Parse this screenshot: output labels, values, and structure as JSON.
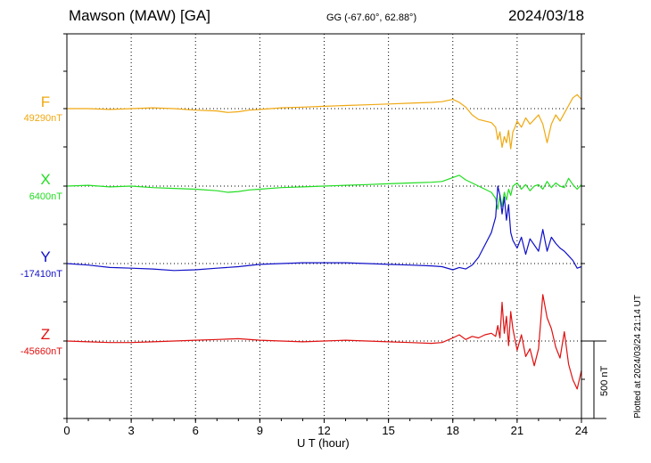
{
  "header": {
    "title": "Mawson (MAW)  [GA]",
    "coords": "GG (-67.60°,  62.88°)",
    "date": "2024/03/18"
  },
  "plotted_note": "Plotted at 2024/03/24 21:14 UT",
  "scale_label": "500 nT",
  "colors": {
    "F": "#f0a810",
    "X": "#22dd22",
    "Y": "#1010c8",
    "Z": "#e01010"
  },
  "components": [
    {
      "id": "F",
      "label": "F",
      "baseline": "49290nT"
    },
    {
      "id": "X",
      "label": "X",
      "baseline": "6400nT"
    },
    {
      "id": "Y",
      "label": "Y",
      "baseline": "-17410nT"
    },
    {
      "id": "Z",
      "label": "Z",
      "baseline": "-45660nT"
    }
  ],
  "chart_data": {
    "type": "line",
    "title": "Mawson (MAW)  [GA]",
    "xlabel": "U T (hour)",
    "ylabel": "",
    "xlim": [
      0,
      24
    ],
    "xticks": [
      0,
      3,
      6,
      9,
      12,
      15,
      18,
      21,
      24
    ],
    "tick_labels": [
      "0",
      "3",
      "6",
      "9",
      "12",
      "15",
      "18",
      "21",
      "24"
    ],
    "units": "nT",
    "scale_bar_nT": 500,
    "grid": true,
    "series": [
      {
        "name": "F",
        "baseline_nT": 49290,
        "x": [
          0,
          1,
          2,
          3,
          4,
          5,
          6,
          7,
          7.5,
          8,
          8.5,
          9,
          10,
          11,
          12,
          13,
          14,
          15,
          16,
          17,
          17.5,
          18,
          18.3,
          18.6,
          18.9,
          19.2,
          19.5,
          19.8,
          20.0,
          20.1,
          20.2,
          20.3,
          20.4,
          20.5,
          20.6,
          20.7,
          20.8,
          20.9,
          21.0,
          21.2,
          21.4,
          21.6,
          21.8,
          22.0,
          22.2,
          22.4,
          22.5,
          22.6,
          22.8,
          23.0,
          23.2,
          23.4,
          23.6,
          23.8,
          24
        ],
        "values": [
          0,
          0,
          -5,
          0,
          5,
          0,
          -10,
          -15,
          -25,
          -20,
          -10,
          -5,
          5,
          10,
          15,
          20,
          25,
          30,
          35,
          40,
          45,
          60,
          40,
          10,
          -40,
          -70,
          -80,
          -90,
          -120,
          -200,
          -150,
          -250,
          -180,
          -220,
          -140,
          -260,
          -150,
          -120,
          -80,
          -120,
          -60,
          -100,
          -70,
          -40,
          -100,
          -220,
          -160,
          -100,
          -40,
          -80,
          -30,
          20,
          70,
          90,
          60
        ]
      },
      {
        "name": "X",
        "baseline_nT": 6400,
        "x": [
          0,
          1,
          2,
          3,
          4,
          5,
          6,
          7,
          7.5,
          8,
          8.5,
          9,
          10,
          11,
          12,
          13,
          14,
          15,
          16,
          17,
          17.5,
          18,
          18.3,
          18.6,
          18.9,
          19.2,
          19.5,
          19.8,
          20.0,
          20.1,
          20.2,
          20.3,
          20.4,
          20.5,
          20.6,
          20.7,
          20.8,
          21.0,
          21.2,
          21.4,
          21.6,
          21.8,
          22.0,
          22.2,
          22.4,
          22.6,
          22.8,
          23.0,
          23.2,
          23.4,
          23.6,
          23.8,
          24
        ],
        "values": [
          0,
          5,
          -5,
          0,
          -10,
          -15,
          -20,
          -30,
          -40,
          -35,
          -25,
          -20,
          -10,
          -5,
          0,
          5,
          10,
          15,
          20,
          25,
          30,
          55,
          70,
          40,
          20,
          0,
          -20,
          -40,
          -80,
          -150,
          -60,
          -130,
          -40,
          -90,
          -20,
          -60,
          0,
          20,
          -20,
          10,
          -30,
          0,
          10,
          -20,
          30,
          -10,
          20,
          0,
          -10,
          50,
          10,
          -20,
          10
        ]
      },
      {
        "name": "Y",
        "baseline_nT": -17410,
        "x": [
          0,
          1,
          2,
          3,
          4,
          5,
          6,
          7,
          8,
          9,
          10,
          11,
          12,
          13,
          14,
          15,
          16,
          17,
          17.5,
          18,
          18.3,
          18.6,
          18.9,
          19.2,
          19.5,
          19.8,
          20.0,
          20.1,
          20.2,
          20.3,
          20.4,
          20.5,
          20.6,
          20.7,
          20.8,
          21.0,
          21.2,
          21.4,
          21.6,
          21.8,
          22.0,
          22.2,
          22.4,
          22.6,
          22.8,
          23.0,
          23.2,
          23.4,
          23.6,
          23.8,
          24
        ],
        "values": [
          0,
          -10,
          -25,
          -30,
          -35,
          -45,
          -40,
          -30,
          -20,
          -5,
          0,
          5,
          5,
          5,
          0,
          -5,
          -10,
          -15,
          -20,
          -40,
          -25,
          -35,
          -10,
          40,
          120,
          200,
          300,
          500,
          440,
          320,
          430,
          280,
          380,
          200,
          150,
          100,
          170,
          60,
          160,
          120,
          80,
          220,
          80,
          170,
          130,
          100,
          80,
          50,
          20,
          -30,
          -20
        ]
      },
      {
        "name": "Z",
        "baseline_nT": -45660,
        "x": [
          0,
          1,
          2,
          3,
          4,
          5,
          6,
          7,
          8,
          9,
          10,
          11,
          12,
          13,
          14,
          15,
          16,
          17,
          17.5,
          18,
          18.3,
          18.6,
          18.9,
          19.2,
          19.5,
          19.8,
          20.0,
          20.1,
          20.2,
          20.3,
          20.4,
          20.5,
          20.6,
          20.7,
          20.8,
          21.0,
          21.2,
          21.4,
          21.6,
          21.8,
          22.0,
          22.2,
          22.4,
          22.6,
          22.8,
          23.0,
          23.2,
          23.4,
          23.6,
          23.8,
          24
        ],
        "values": [
          0,
          -5,
          -10,
          -10,
          -5,
          0,
          5,
          10,
          15,
          5,
          0,
          -5,
          0,
          5,
          0,
          -5,
          -10,
          -15,
          -10,
          20,
          40,
          10,
          30,
          20,
          40,
          50,
          30,
          100,
          20,
          250,
          50,
          160,
          -30,
          190,
          80,
          -60,
          40,
          -100,
          -50,
          -160,
          -50,
          300,
          150,
          80,
          -40,
          -110,
          60,
          -150,
          -250,
          -310,
          -190
        ]
      }
    ]
  }
}
